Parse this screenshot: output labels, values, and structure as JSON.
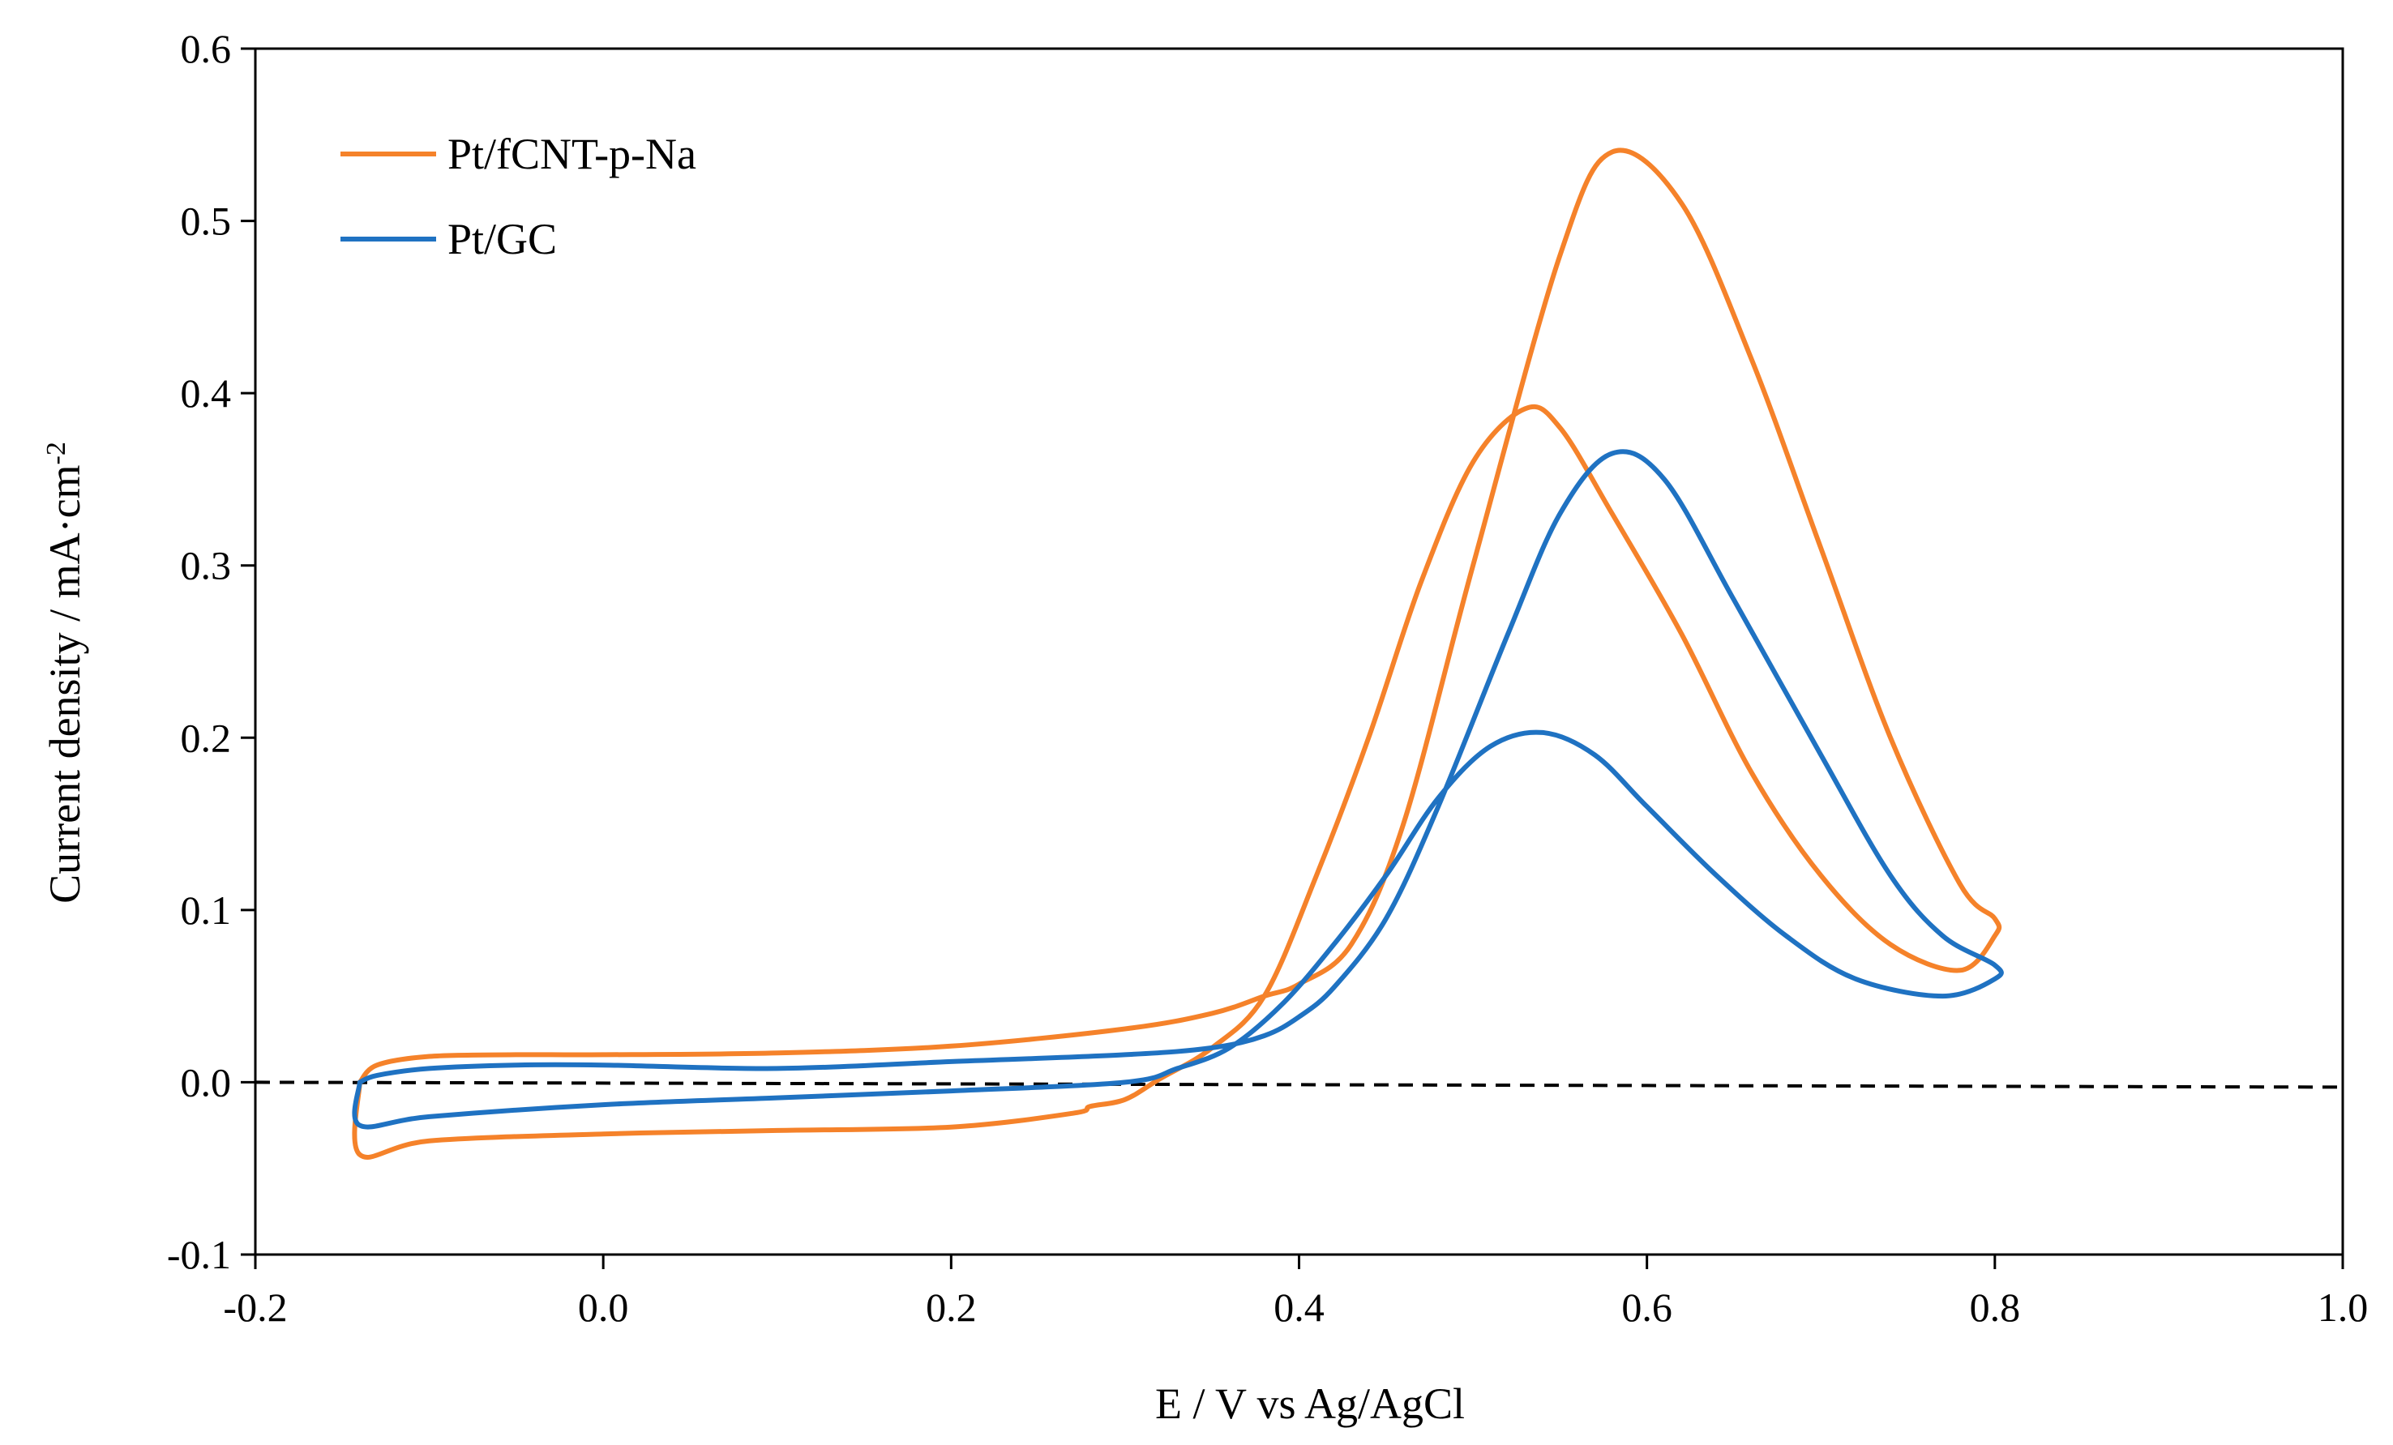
{
  "chart_data": {
    "type": "line",
    "title": "",
    "xlabel": "E / V vs Ag/AgCl",
    "ylabel": "Current density / mA·cm",
    "ylabel_superscript": "-2",
    "xlim": [
      -0.2,
      1.0
    ],
    "ylim": [
      -0.1,
      0.6
    ],
    "xticks": [
      "-0.2",
      "0.0",
      "0.2",
      "0.4",
      "0.6",
      "0.8",
      "1.0"
    ],
    "yticks": [
      "-0.1",
      "0.0",
      "0.1",
      "0.2",
      "0.3",
      "0.4",
      "0.5",
      "0.6"
    ],
    "grid": false,
    "legend_position": "top-left",
    "reference_line": {
      "y": 0.0,
      "style": "dashed",
      "color": "#000000"
    },
    "series": [
      {
        "name": "Pt/fCNT-p-Na",
        "color": "#F5822A",
        "x": [
          -0.14,
          -0.13,
          -0.1,
          -0.05,
          0.0,
          0.1,
          0.2,
          0.3,
          0.35,
          0.38,
          0.4,
          0.43,
          0.46,
          0.5,
          0.55,
          0.58,
          0.62,
          0.66,
          0.7,
          0.74,
          0.78,
          0.8,
          0.8,
          0.78,
          0.74,
          0.7,
          0.66,
          0.62,
          0.58,
          0.55,
          0.53,
          0.5,
          0.47,
          0.44,
          0.41,
          0.38,
          0.35,
          0.32,
          0.3,
          0.28,
          0.27,
          0.2,
          0.1,
          0.0,
          -0.1,
          -0.14,
          -0.14
        ],
        "y": [
          0.0,
          0.01,
          0.015,
          0.016,
          0.016,
          0.017,
          0.021,
          0.031,
          0.04,
          0.05,
          0.057,
          0.08,
          0.15,
          0.3,
          0.48,
          0.54,
          0.51,
          0.42,
          0.31,
          0.2,
          0.115,
          0.095,
          0.085,
          0.065,
          0.08,
          0.12,
          0.18,
          0.26,
          0.33,
          0.38,
          0.391,
          0.36,
          0.29,
          0.2,
          0.12,
          0.05,
          0.02,
          0.002,
          -0.01,
          -0.014,
          -0.018,
          -0.026,
          -0.028,
          -0.03,
          -0.034,
          -0.042,
          0.0
        ]
      },
      {
        "name": "Pt/GC",
        "color": "#1F72C2",
        "x": [
          -0.14,
          -0.13,
          -0.1,
          -0.05,
          0.0,
          0.1,
          0.2,
          0.3,
          0.35,
          0.38,
          0.4,
          0.42,
          0.45,
          0.48,
          0.52,
          0.55,
          0.58,
          0.61,
          0.65,
          0.7,
          0.74,
          0.77,
          0.8,
          0.8,
          0.77,
          0.72,
          0.68,
          0.64,
          0.6,
          0.57,
          0.54,
          0.51,
          0.48,
          0.45,
          0.42,
          0.39,
          0.36,
          0.33,
          0.3,
          0.2,
          0.1,
          0.0,
          -0.1,
          -0.14,
          -0.14
        ],
        "y": [
          0.0,
          0.004,
          0.008,
          0.01,
          0.01,
          0.008,
          0.012,
          0.016,
          0.02,
          0.027,
          0.038,
          0.055,
          0.095,
          0.16,
          0.26,
          0.33,
          0.365,
          0.35,
          0.28,
          0.19,
          0.12,
          0.085,
          0.068,
          0.06,
          0.05,
          0.06,
          0.085,
          0.12,
          0.16,
          0.19,
          0.203,
          0.195,
          0.165,
          0.12,
          0.08,
          0.045,
          0.02,
          0.008,
          0.0,
          -0.005,
          -0.009,
          -0.013,
          -0.02,
          -0.025,
          0.0
        ]
      }
    ]
  }
}
